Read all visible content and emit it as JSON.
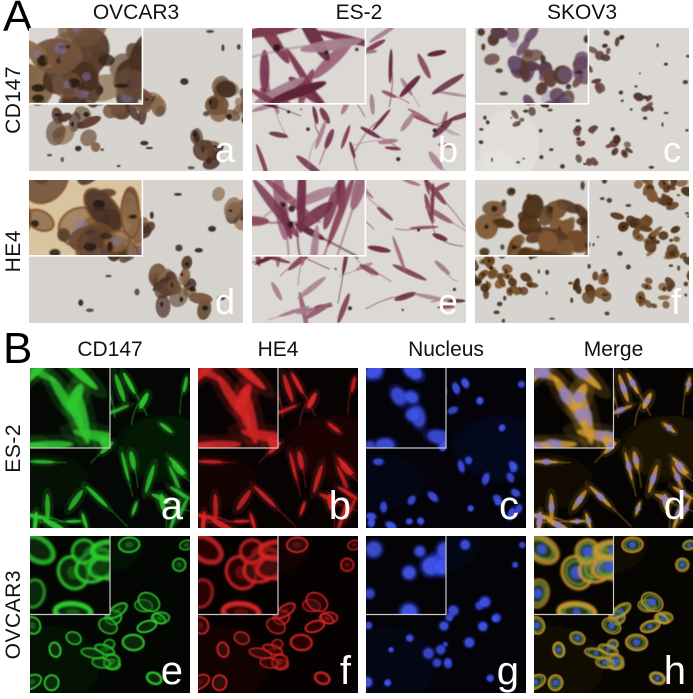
{
  "panel_a": {
    "label": "A",
    "column_headers": [
      "OVCAR3",
      "ES-2",
      "SKOV3"
    ],
    "row_labels": [
      "CD147",
      "HE4"
    ],
    "tiles": [
      {
        "sublabel": "a",
        "antibody": "CD147",
        "cell_line": "OVCAR3"
      },
      {
        "sublabel": "b",
        "antibody": "CD147",
        "cell_line": "ES-2"
      },
      {
        "sublabel": "c",
        "antibody": "CD147",
        "cell_line": "SKOV3"
      },
      {
        "sublabel": "d",
        "antibody": "HE4",
        "cell_line": "OVCAR3"
      },
      {
        "sublabel": "e",
        "antibody": "HE4",
        "cell_line": "ES-2"
      },
      {
        "sublabel": "f",
        "antibody": "HE4",
        "cell_line": "SKOV3"
      }
    ],
    "colors": {
      "slide_background": "#d8d5d1",
      "brown_stain": "#7a5638",
      "red_purple_stain": "#8a4458",
      "purple_nuclei": "#8678ab",
      "inset_border": "#ffffff"
    }
  },
  "panel_b": {
    "label": "B",
    "column_headers": [
      "CD147",
      "HE4",
      "Nucleus",
      "Merge"
    ],
    "row_labels": [
      "ES-2",
      "OVCAR3"
    ],
    "tiles": [
      {
        "sublabel": "a",
        "row": "ES-2",
        "channel": "CD147",
        "channel_color": "#2fc72f"
      },
      {
        "sublabel": "b",
        "row": "ES-2",
        "channel": "HE4",
        "channel_color": "#d52525"
      },
      {
        "sublabel": "c",
        "row": "ES-2",
        "channel": "Nucleus",
        "channel_color": "#2b3bd8"
      },
      {
        "sublabel": "d",
        "row": "ES-2",
        "channel": "Merge",
        "channel_color": "#d09a30"
      },
      {
        "sublabel": "e",
        "row": "OVCAR3",
        "channel": "CD147",
        "channel_color": "#2fd22f"
      },
      {
        "sublabel": "f",
        "row": "OVCAR3",
        "channel": "HE4",
        "channel_color": "#da2626"
      },
      {
        "sublabel": "g",
        "row": "OVCAR3",
        "channel": "Nucleus",
        "channel_color": "#2b3bd8"
      },
      {
        "sublabel": "h",
        "row": "OVCAR3",
        "channel": "Merge",
        "channel_color": "#d09a30"
      }
    ],
    "colors": {
      "background": "#050505",
      "inset_border": "#c9c9c9",
      "merge_nucleus_violet": "#8b7ed6"
    }
  }
}
